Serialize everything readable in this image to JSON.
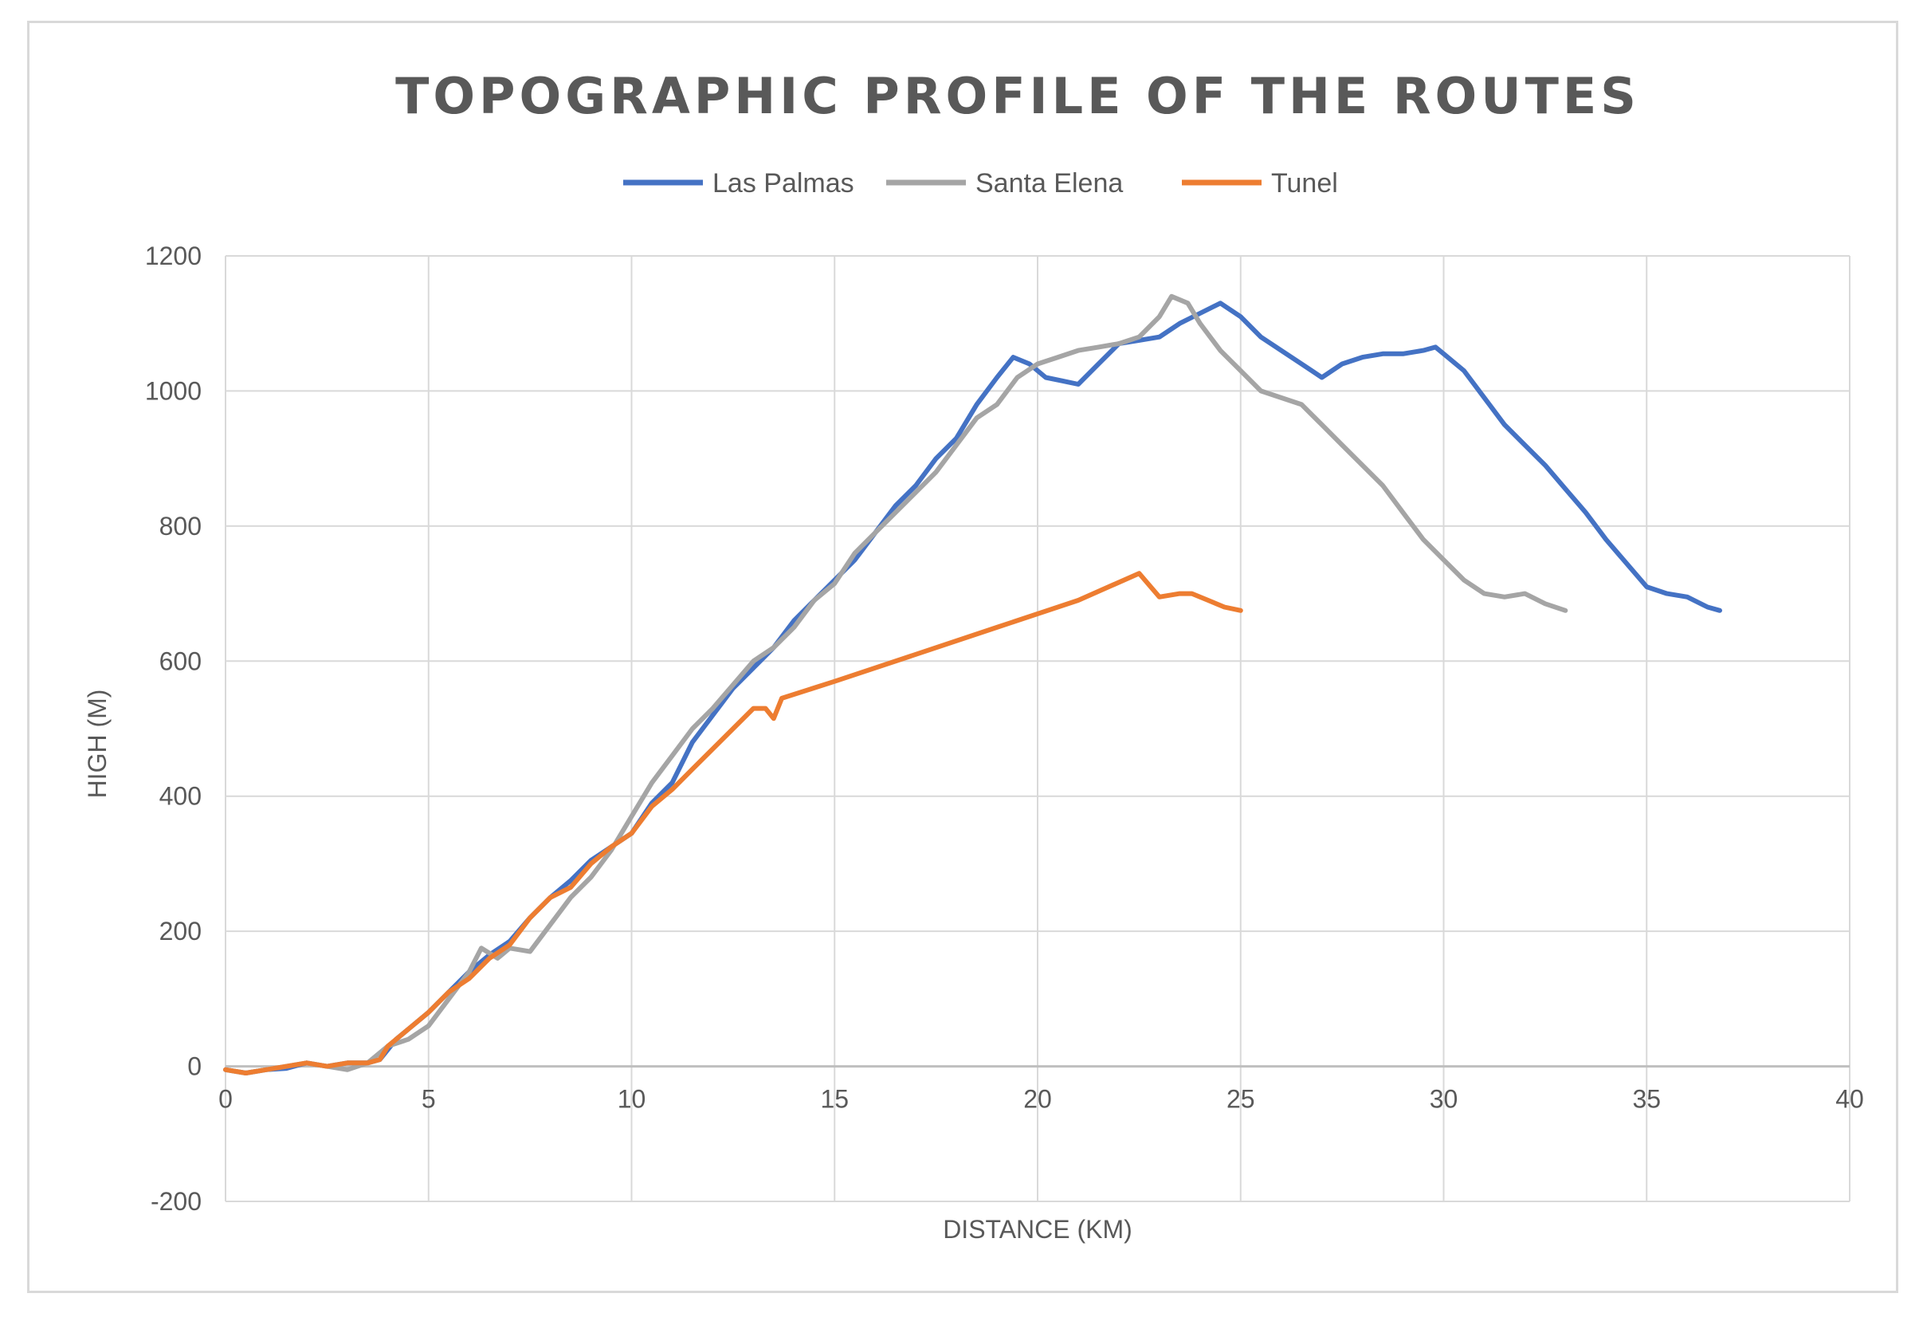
{
  "chart_data": {
    "type": "line",
    "title": "TOPOGRAPHIC PROFILE OF THE ROUTES",
    "xlabel": "DISTANCE (KM)",
    "ylabel": "HIGH (M)",
    "xlim": [
      0,
      40
    ],
    "ylim": [
      -200,
      1200
    ],
    "xticks": [
      0,
      5,
      10,
      15,
      20,
      25,
      30,
      35,
      40
    ],
    "yticks": [
      -200,
      0,
      200,
      400,
      600,
      800,
      1000,
      1200
    ],
    "xtick_labels": [
      "0",
      "5",
      "10",
      "15",
      "20",
      "25",
      "30",
      "35",
      "40"
    ],
    "ytick_labels": [
      "-200",
      "0",
      "200",
      "400",
      "600",
      "800",
      "1000",
      "1200"
    ],
    "grid": true,
    "legend_position": "top",
    "series": [
      {
        "name": "Las Palmas",
        "color": "#4472c4",
        "points": [
          [
            0,
            -5
          ],
          [
            0.5,
            -10
          ],
          [
            1,
            -5
          ],
          [
            1.5,
            -3
          ],
          [
            2,
            5
          ],
          [
            2.5,
            0
          ],
          [
            3,
            5
          ],
          [
            3.5,
            5
          ],
          [
            3.8,
            10
          ],
          [
            4.2,
            40
          ],
          [
            4.5,
            55
          ],
          [
            5,
            80
          ],
          [
            5.5,
            110
          ],
          [
            6,
            140
          ],
          [
            6.5,
            165
          ],
          [
            7,
            185
          ],
          [
            7.5,
            220
          ],
          [
            8,
            250
          ],
          [
            8.5,
            275
          ],
          [
            9,
            305
          ],
          [
            9.5,
            325
          ],
          [
            10,
            345
          ],
          [
            10.5,
            390
          ],
          [
            11,
            420
          ],
          [
            11.5,
            480
          ],
          [
            12,
            520
          ],
          [
            12.5,
            560
          ],
          [
            13,
            590
          ],
          [
            13.5,
            620
          ],
          [
            14,
            660
          ],
          [
            14.5,
            690
          ],
          [
            15,
            720
          ],
          [
            15.5,
            750
          ],
          [
            16,
            790
          ],
          [
            16.5,
            830
          ],
          [
            17,
            860
          ],
          [
            17.5,
            900
          ],
          [
            18,
            930
          ],
          [
            18.5,
            980
          ],
          [
            19,
            1020
          ],
          [
            19.4,
            1050
          ],
          [
            19.8,
            1040
          ],
          [
            20.2,
            1020
          ],
          [
            20.6,
            1015
          ],
          [
            21,
            1010
          ],
          [
            21.5,
            1040
          ],
          [
            22,
            1070
          ],
          [
            22.5,
            1075
          ],
          [
            23,
            1080
          ],
          [
            23.5,
            1100
          ],
          [
            24,
            1115
          ],
          [
            24.5,
            1130
          ],
          [
            25,
            1110
          ],
          [
            25.5,
            1080
          ],
          [
            26,
            1060
          ],
          [
            26.5,
            1040
          ],
          [
            27,
            1020
          ],
          [
            27.5,
            1040
          ],
          [
            28,
            1050
          ],
          [
            28.5,
            1055
          ],
          [
            29,
            1055
          ],
          [
            29.5,
            1060
          ],
          [
            29.8,
            1065
          ],
          [
            30,
            1055
          ],
          [
            30.5,
            1030
          ],
          [
            31,
            990
          ],
          [
            31.5,
            950
          ],
          [
            32,
            920
          ],
          [
            32.5,
            890
          ],
          [
            33,
            855
          ],
          [
            33.5,
            820
          ],
          [
            34,
            780
          ],
          [
            34.5,
            745
          ],
          [
            35,
            710
          ],
          [
            35.5,
            700
          ],
          [
            36,
            695
          ],
          [
            36.5,
            680
          ],
          [
            36.8,
            675
          ]
        ]
      },
      {
        "name": "Santa Elena",
        "color": "#a5a5a5",
        "points": [
          [
            0,
            -5
          ],
          [
            0.5,
            -10
          ],
          [
            1,
            -5
          ],
          [
            1.5,
            0
          ],
          [
            2,
            5
          ],
          [
            2.5,
            0
          ],
          [
            3,
            -5
          ],
          [
            3.5,
            5
          ],
          [
            4,
            30
          ],
          [
            4.5,
            40
          ],
          [
            5,
            60
          ],
          [
            5.5,
            100
          ],
          [
            6,
            140
          ],
          [
            6.3,
            175
          ],
          [
            6.7,
            160
          ],
          [
            7,
            175
          ],
          [
            7.5,
            170
          ],
          [
            8,
            210
          ],
          [
            8.5,
            250
          ],
          [
            9,
            280
          ],
          [
            9.5,
            320
          ],
          [
            10,
            370
          ],
          [
            10.5,
            420
          ],
          [
            11,
            460
          ],
          [
            11.5,
            500
          ],
          [
            12,
            530
          ],
          [
            12.5,
            565
          ],
          [
            13,
            600
          ],
          [
            13.5,
            620
          ],
          [
            14,
            650
          ],
          [
            14.5,
            690
          ],
          [
            15,
            715
          ],
          [
            15.5,
            760
          ],
          [
            16,
            790
          ],
          [
            16.5,
            820
          ],
          [
            17,
            850
          ],
          [
            17.5,
            880
          ],
          [
            18,
            920
          ],
          [
            18.5,
            960
          ],
          [
            19,
            980
          ],
          [
            19.5,
            1020
          ],
          [
            20,
            1040
          ],
          [
            20.5,
            1050
          ],
          [
            21,
            1060
          ],
          [
            21.5,
            1065
          ],
          [
            22,
            1070
          ],
          [
            22.5,
            1080
          ],
          [
            23,
            1110
          ],
          [
            23.3,
            1140
          ],
          [
            23.7,
            1130
          ],
          [
            24,
            1100
          ],
          [
            24.5,
            1060
          ],
          [
            25,
            1030
          ],
          [
            25.5,
            1000
          ],
          [
            26,
            990
          ],
          [
            26.5,
            980
          ],
          [
            27,
            950
          ],
          [
            27.5,
            920
          ],
          [
            28,
            890
          ],
          [
            28.5,
            860
          ],
          [
            29,
            820
          ],
          [
            29.5,
            780
          ],
          [
            30,
            750
          ],
          [
            30.5,
            720
          ],
          [
            31,
            700
          ],
          [
            31.5,
            695
          ],
          [
            32,
            700
          ],
          [
            32.5,
            685
          ],
          [
            33,
            675
          ]
        ]
      },
      {
        "name": "Tunel",
        "color": "#ed7d31",
        "points": [
          [
            0,
            -5
          ],
          [
            0.5,
            -10
          ],
          [
            1,
            -5
          ],
          [
            1.5,
            0
          ],
          [
            2,
            5
          ],
          [
            2.5,
            0
          ],
          [
            3,
            5
          ],
          [
            3.5,
            5
          ],
          [
            3.8,
            10
          ],
          [
            4,
            30
          ],
          [
            4.5,
            55
          ],
          [
            5,
            80
          ],
          [
            5.5,
            110
          ],
          [
            6,
            130
          ],
          [
            6.5,
            160
          ],
          [
            7,
            180
          ],
          [
            7.5,
            220
          ],
          [
            8,
            250
          ],
          [
            8.5,
            265
          ],
          [
            9,
            300
          ],
          [
            9.5,
            325
          ],
          [
            10,
            345
          ],
          [
            10.5,
            385
          ],
          [
            11,
            410
          ],
          [
            11.5,
            440
          ],
          [
            12,
            470
          ],
          [
            12.5,
            500
          ],
          [
            13,
            530
          ],
          [
            13.3,
            530
          ],
          [
            13.5,
            515
          ],
          [
            13.7,
            545
          ],
          [
            15,
            570
          ],
          [
            17,
            610
          ],
          [
            19,
            650
          ],
          [
            21,
            690
          ],
          [
            22.5,
            730
          ],
          [
            23,
            695
          ],
          [
            23.5,
            700
          ],
          [
            23.8,
            700
          ],
          [
            24.2,
            690
          ],
          [
            24.6,
            680
          ],
          [
            25,
            675
          ]
        ]
      }
    ]
  }
}
